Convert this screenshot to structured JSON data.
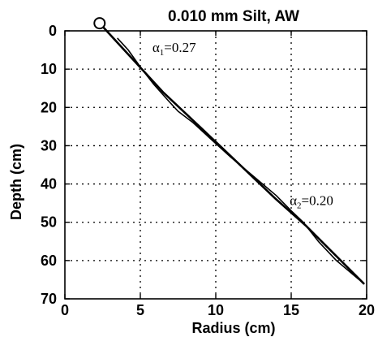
{
  "chart_data": {
    "type": "line",
    "title": "0.010 mm Silt, AW",
    "xlabel": "Radius (cm)",
    "ylabel": "Depth (cm)",
    "xlim": [
      0,
      20
    ],
    "ylim": [
      0,
      70
    ],
    "y_inverted": true,
    "grid": true,
    "grid_style": "dotted",
    "xticks": [
      "0",
      "5",
      "10",
      "15",
      "20"
    ],
    "yticks": [
      "0",
      "10",
      "20",
      "30",
      "40",
      "50",
      "60",
      "70"
    ],
    "series": [
      {
        "kind": "fit",
        "x": [
          2.3,
          6.5,
          10,
          14,
          16,
          19.8
        ],
        "y": [
          -2,
          16,
          29,
          44,
          51,
          66
        ]
      },
      {
        "kind": "measured",
        "x": [
          3.5,
          4.2,
          5.1,
          5.9,
          6.8,
          7.5,
          8.5,
          9.6,
          11,
          12.5,
          14,
          15,
          15.8,
          16.8,
          18,
          19.5
        ],
        "y": [
          2,
          5,
          10,
          14,
          18,
          21,
          24,
          28,
          33,
          38,
          43,
          47,
          50,
          55,
          60,
          65
        ]
      }
    ],
    "marker": {
      "shape": "circle",
      "x": 2.3,
      "y": -2
    },
    "annotations": [
      {
        "base": "α",
        "sub": "1",
        "rest": "=0.27",
        "x": 5.8,
        "y": 5.5
      },
      {
        "base": "α",
        "sub": "2",
        "rest": "=0.20",
        "x": 14.9,
        "y": 45.5
      }
    ]
  }
}
